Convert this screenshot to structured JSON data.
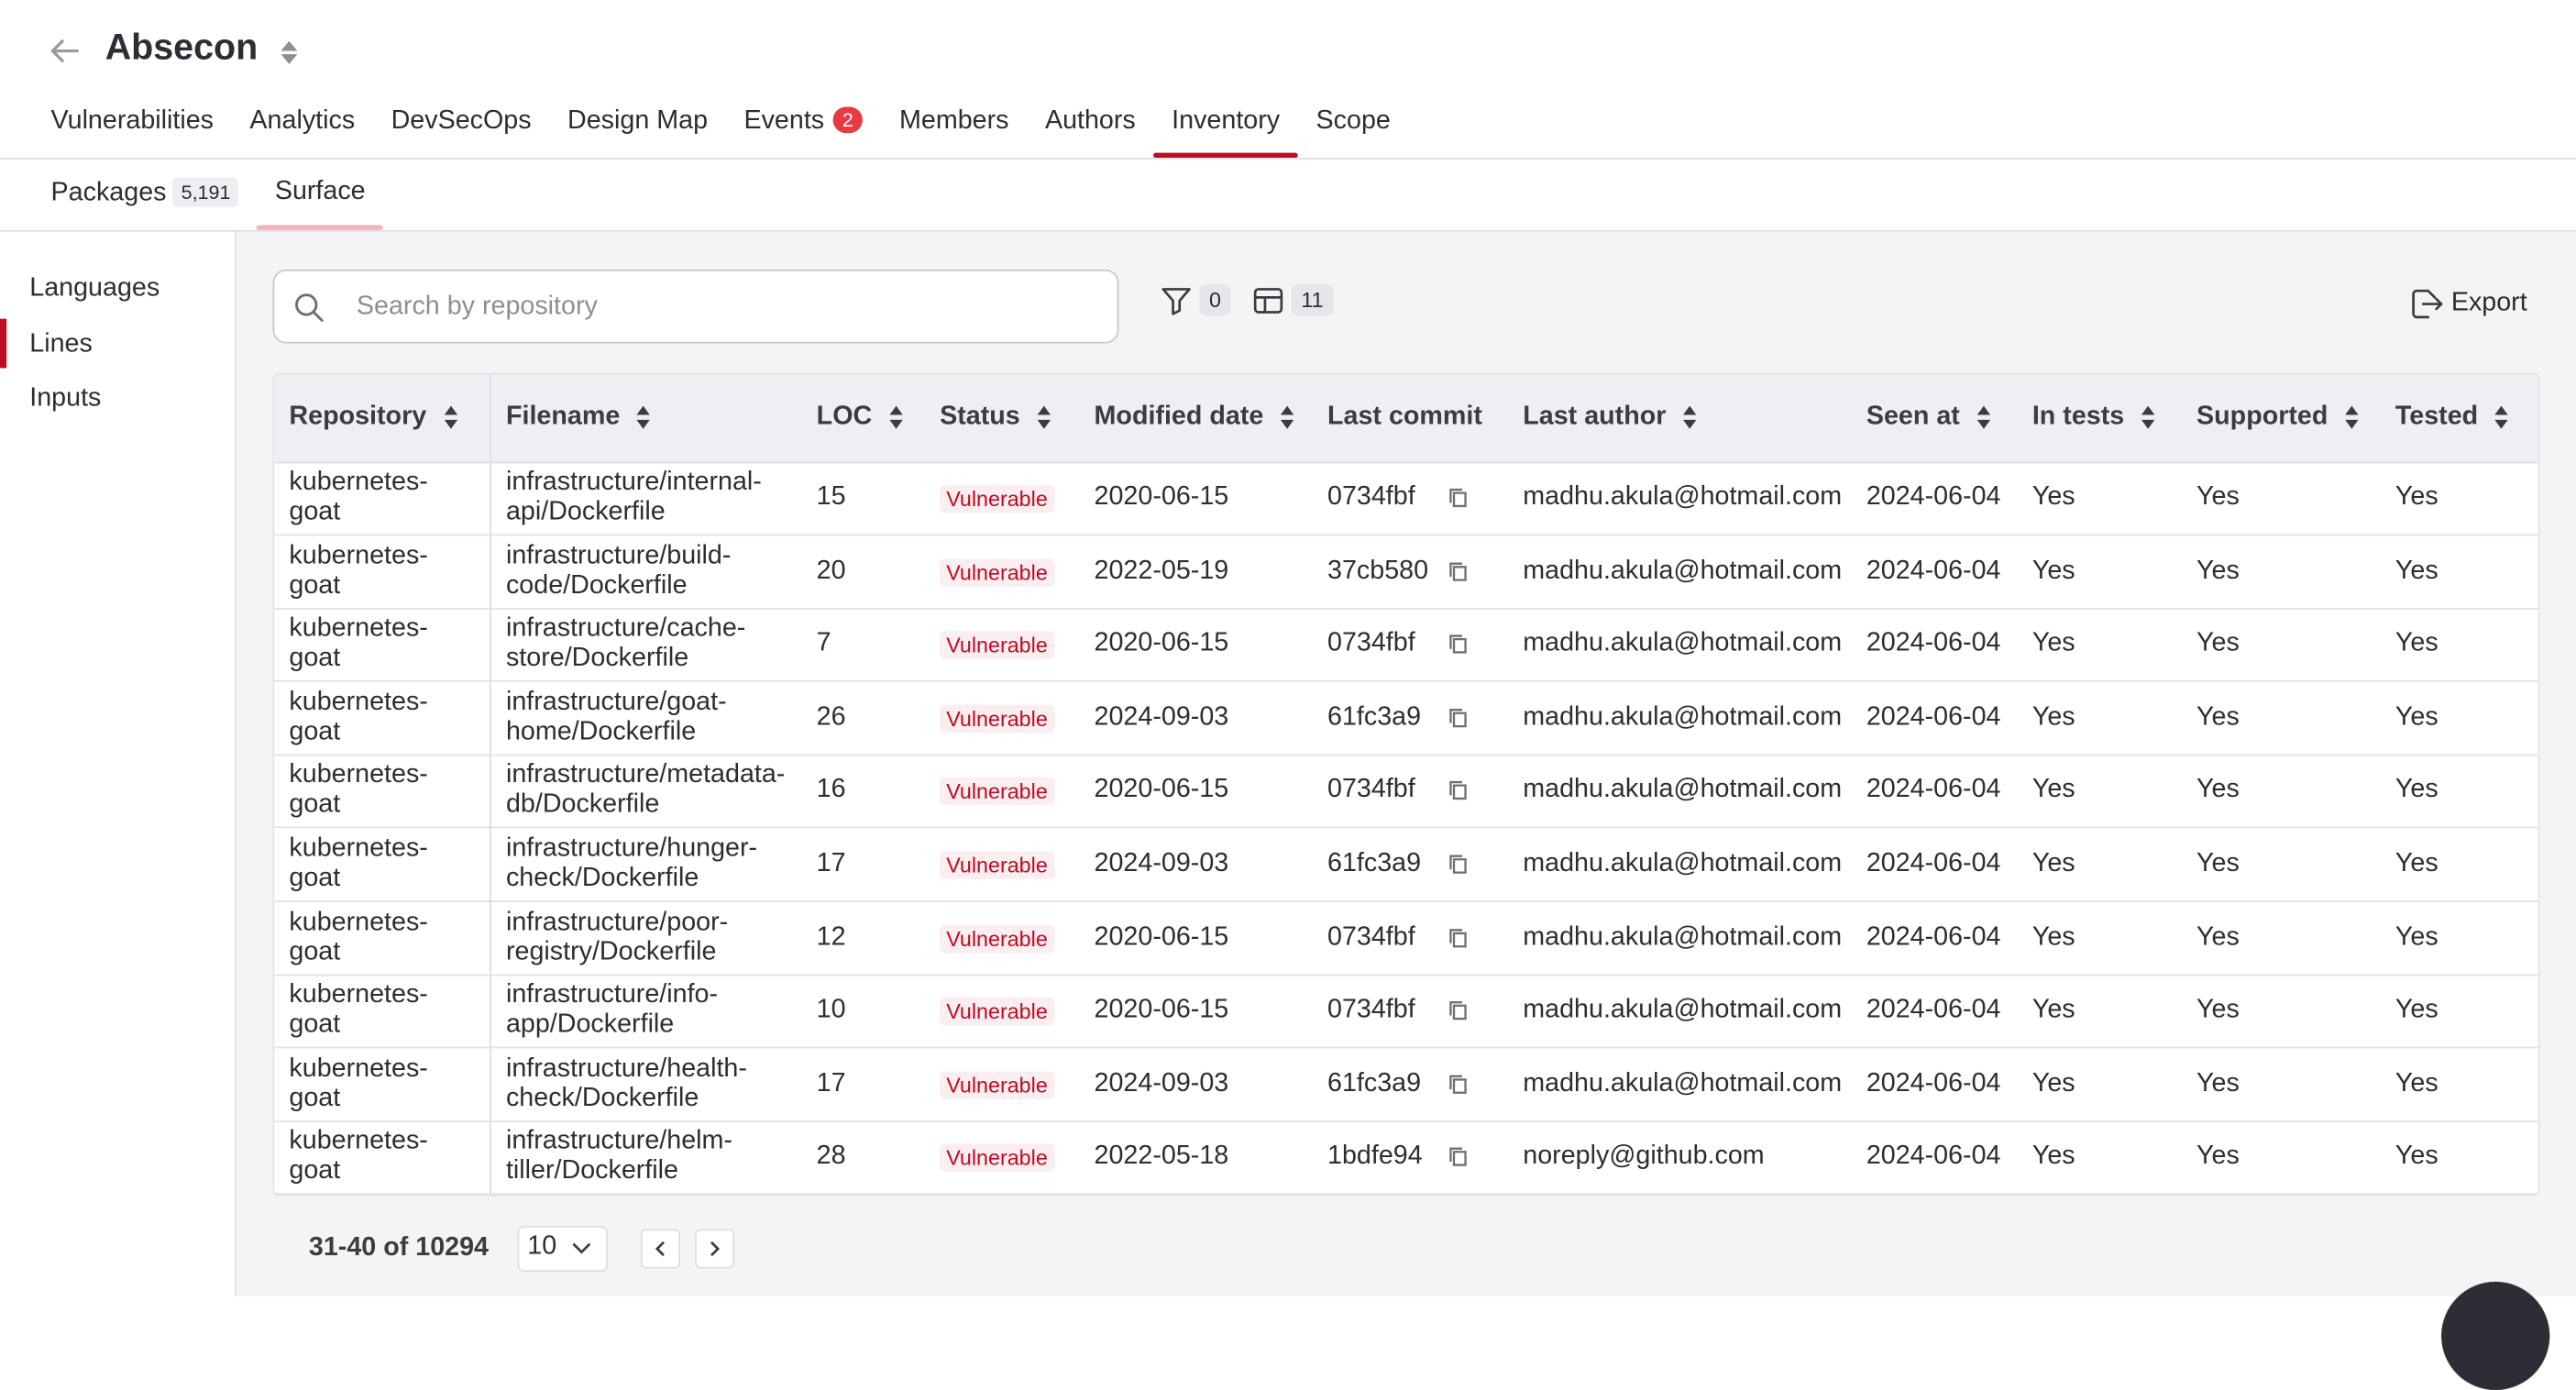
{
  "project": {
    "title": "Absecon"
  },
  "tabs": [
    {
      "label": "Vulnerabilities"
    },
    {
      "label": "Analytics"
    },
    {
      "label": "DevSecOps"
    },
    {
      "label": "Design Map"
    },
    {
      "label": "Events",
      "badge": "2"
    },
    {
      "label": "Members"
    },
    {
      "label": "Authors"
    },
    {
      "label": "Inventory",
      "active": true
    },
    {
      "label": "Scope"
    }
  ],
  "subtabs": [
    {
      "label": "Packages",
      "count": "5,191"
    },
    {
      "label": "Surface",
      "active": true
    }
  ],
  "sidebar": {
    "items": [
      {
        "label": "Languages"
      },
      {
        "label": "Lines",
        "active": true
      },
      {
        "label": "Inputs"
      }
    ]
  },
  "toolbar": {
    "search_placeholder": "Search by repository",
    "filter_count": "0",
    "columns_count": "11",
    "export_label": "Export"
  },
  "table": {
    "headers": [
      "Repository",
      "Filename",
      "LOC",
      "Status",
      "Modified date",
      "Last commit",
      "Last author",
      "Seen at",
      "In tests",
      "Supported",
      "Tested"
    ],
    "rows": [
      {
        "repo": [
          "kubernetes-",
          "goat"
        ],
        "file": [
          "infrastructure/internal-",
          "api/Dockerfile"
        ],
        "loc": "15",
        "status": "Vulnerable",
        "modified": "2020-06-15",
        "commit": "0734fbf",
        "author": "madhu.akula@hotmail.com",
        "seen": "2024-06-04",
        "in_tests": "Yes",
        "supported": "Yes",
        "tested": "Yes"
      },
      {
        "repo": [
          "kubernetes-",
          "goat"
        ],
        "file": [
          "infrastructure/build-",
          "code/Dockerfile"
        ],
        "loc": "20",
        "status": "Vulnerable",
        "modified": "2022-05-19",
        "commit": "37cb580",
        "author": "madhu.akula@hotmail.com",
        "seen": "2024-06-04",
        "in_tests": "Yes",
        "supported": "Yes",
        "tested": "Yes"
      },
      {
        "repo": [
          "kubernetes-",
          "goat"
        ],
        "file": [
          "infrastructure/cache-",
          "store/Dockerfile"
        ],
        "loc": "7",
        "status": "Vulnerable",
        "modified": "2020-06-15",
        "commit": "0734fbf",
        "author": "madhu.akula@hotmail.com",
        "seen": "2024-06-04",
        "in_tests": "Yes",
        "supported": "Yes",
        "tested": "Yes"
      },
      {
        "repo": [
          "kubernetes-",
          "goat"
        ],
        "file": [
          "infrastructure/goat-",
          "home/Dockerfile"
        ],
        "loc": "26",
        "status": "Vulnerable",
        "modified": "2024-09-03",
        "commit": "61fc3a9",
        "author": "madhu.akula@hotmail.com",
        "seen": "2024-06-04",
        "in_tests": "Yes",
        "supported": "Yes",
        "tested": "Yes"
      },
      {
        "repo": [
          "kubernetes-",
          "goat"
        ],
        "file": [
          "infrastructure/metadata-",
          "db/Dockerfile"
        ],
        "loc": "16",
        "status": "Vulnerable",
        "modified": "2020-06-15",
        "commit": "0734fbf",
        "author": "madhu.akula@hotmail.com",
        "seen": "2024-06-04",
        "in_tests": "Yes",
        "supported": "Yes",
        "tested": "Yes"
      },
      {
        "repo": [
          "kubernetes-",
          "goat"
        ],
        "file": [
          "infrastructure/hunger-",
          "check/Dockerfile"
        ],
        "loc": "17",
        "status": "Vulnerable",
        "modified": "2024-09-03",
        "commit": "61fc3a9",
        "author": "madhu.akula@hotmail.com",
        "seen": "2024-06-04",
        "in_tests": "Yes",
        "supported": "Yes",
        "tested": "Yes"
      },
      {
        "repo": [
          "kubernetes-",
          "goat"
        ],
        "file": [
          "infrastructure/poor-",
          "registry/Dockerfile"
        ],
        "loc": "12",
        "status": "Vulnerable",
        "modified": "2020-06-15",
        "commit": "0734fbf",
        "author": "madhu.akula@hotmail.com",
        "seen": "2024-06-04",
        "in_tests": "Yes",
        "supported": "Yes",
        "tested": "Yes"
      },
      {
        "repo": [
          "kubernetes-",
          "goat"
        ],
        "file": [
          "infrastructure/info-",
          "app/Dockerfile"
        ],
        "loc": "10",
        "status": "Vulnerable",
        "modified": "2020-06-15",
        "commit": "0734fbf",
        "author": "madhu.akula@hotmail.com",
        "seen": "2024-06-04",
        "in_tests": "Yes",
        "supported": "Yes",
        "tested": "Yes"
      },
      {
        "repo": [
          "kubernetes-",
          "goat"
        ],
        "file": [
          "infrastructure/health-",
          "check/Dockerfile"
        ],
        "loc": "17",
        "status": "Vulnerable",
        "modified": "2024-09-03",
        "commit": "61fc3a9",
        "author": "madhu.akula@hotmail.com",
        "seen": "2024-06-04",
        "in_tests": "Yes",
        "supported": "Yes",
        "tested": "Yes"
      },
      {
        "repo": [
          "kubernetes-",
          "goat"
        ],
        "file": [
          "infrastructure/helm-",
          "tiller/Dockerfile"
        ],
        "loc": "28",
        "status": "Vulnerable",
        "modified": "2022-05-18",
        "commit": "1bdfe94",
        "author": "noreply@github.com",
        "seen": "2024-06-04",
        "in_tests": "Yes",
        "supported": "Yes",
        "tested": "Yes"
      }
    ]
  },
  "pagination": {
    "range_label": "31-40 of 10294",
    "page_size": "10"
  }
}
